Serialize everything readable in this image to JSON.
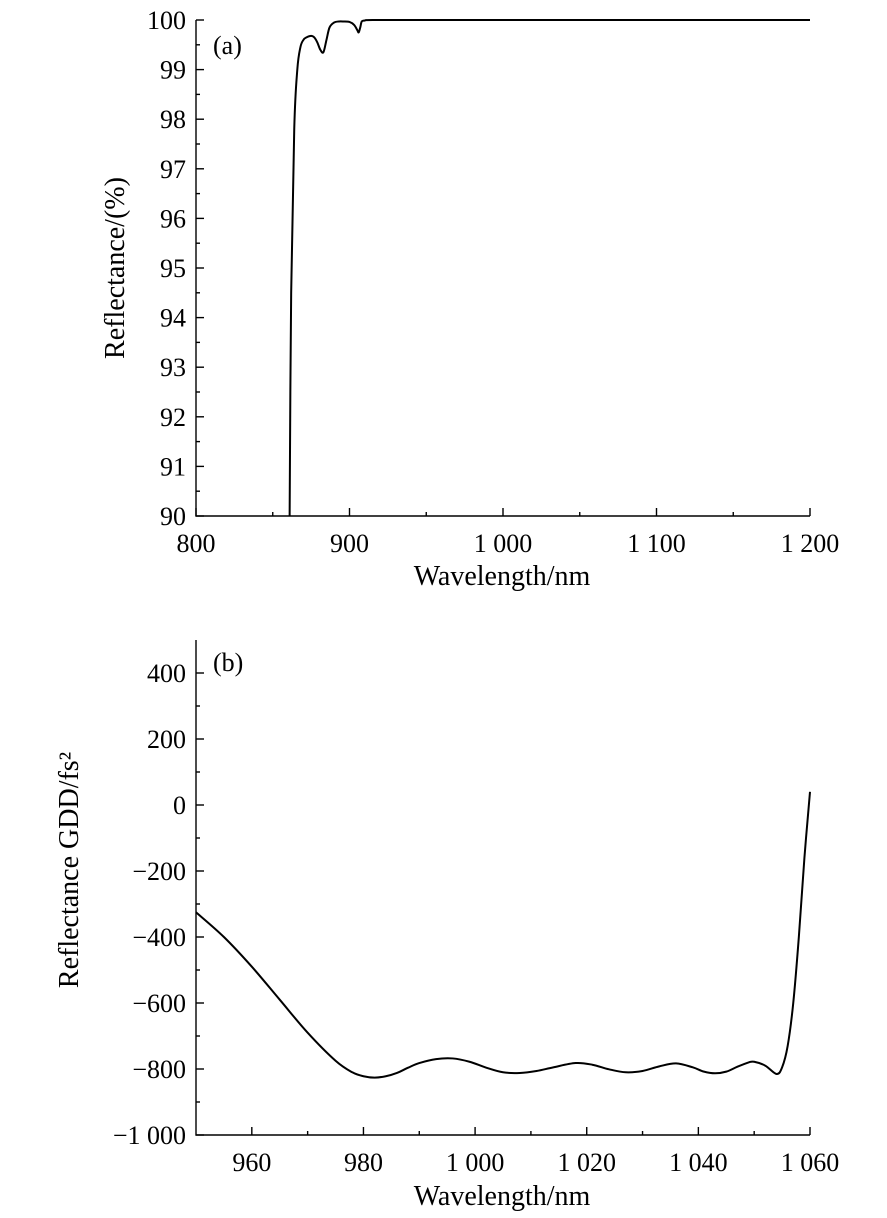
{
  "chart_data": [
    {
      "type": "line",
      "panel_label": "(a)",
      "xlabel": "Wavelength/nm",
      "ylabel": "Reflectance/(%)",
      "xlim": [
        800,
        1200
      ],
      "ylim": [
        90,
        100
      ],
      "x_ticks": [
        800,
        900,
        1000,
        1100,
        1200
      ],
      "x_tick_labels": [
        "800",
        "900",
        "1 000",
        "1 100",
        "1 200"
      ],
      "y_ticks": [
        90,
        91,
        92,
        93,
        94,
        95,
        96,
        97,
        98,
        99,
        100
      ],
      "y_tick_labels": [
        "90",
        "91",
        "92",
        "93",
        "94",
        "95",
        "96",
        "97",
        "98",
        "99",
        "100"
      ],
      "grid": false,
      "series": [
        {
          "x": [
            861,
            862,
            864,
            866,
            868,
            870,
            872,
            875,
            877,
            879,
            881,
            883,
            885,
            887,
            890,
            893,
            896,
            900,
            903,
            905,
            906,
            907,
            908,
            910,
            915,
            950,
            1000,
            1100,
            1200
          ],
          "y": [
            90,
            94.5,
            97.8,
            99.0,
            99.45,
            99.6,
            99.65,
            99.68,
            99.65,
            99.55,
            99.4,
            99.35,
            99.6,
            99.85,
            99.95,
            99.97,
            99.97,
            99.96,
            99.9,
            99.8,
            99.75,
            99.85,
            99.97,
            99.99,
            100,
            100,
            100,
            100,
            100
          ]
        }
      ]
    },
    {
      "type": "line",
      "panel_label": "(b)",
      "xlabel": "Wavelength/nm",
      "ylabel": "Reflectance GDD/fs²",
      "xlim": [
        950,
        1060
      ],
      "ylim": [
        -1000,
        500
      ],
      "x_ticks": [
        960,
        980,
        1000,
        1020,
        1040,
        1060
      ],
      "x_tick_labels": [
        "960",
        "980",
        "1 000",
        "1 020",
        "1 040",
        "1 060"
      ],
      "y_ticks": [
        -1000,
        -800,
        -600,
        -400,
        -200,
        0,
        200,
        400
      ],
      "y_tick_labels": [
        "−1 000",
        "−800",
        "−600",
        "−400",
        "−200",
        "0",
        "200",
        "400"
      ],
      "grid": false,
      "series": [
        {
          "x": [
            950,
            955,
            960,
            965,
            970,
            975,
            978,
            980,
            982,
            984,
            986,
            988,
            990,
            993,
            996,
            999,
            1002,
            1005,
            1008,
            1011,
            1014,
            1018,
            1021,
            1024,
            1027,
            1030,
            1033,
            1036,
            1039,
            1041,
            1043,
            1045,
            1047,
            1049,
            1050,
            1052,
            1054,
            1055,
            1056,
            1057,
            1058,
            1059,
            1060
          ],
          "y": [
            -325,
            -400,
            -490,
            -590,
            -690,
            -775,
            -810,
            -822,
            -826,
            -822,
            -812,
            -796,
            -782,
            -770,
            -768,
            -778,
            -796,
            -810,
            -812,
            -806,
            -795,
            -782,
            -787,
            -801,
            -810,
            -806,
            -792,
            -783,
            -795,
            -808,
            -813,
            -808,
            -793,
            -780,
            -778,
            -790,
            -815,
            -795,
            -730,
            -600,
            -400,
            -160,
            40
          ]
        }
      ]
    }
  ]
}
